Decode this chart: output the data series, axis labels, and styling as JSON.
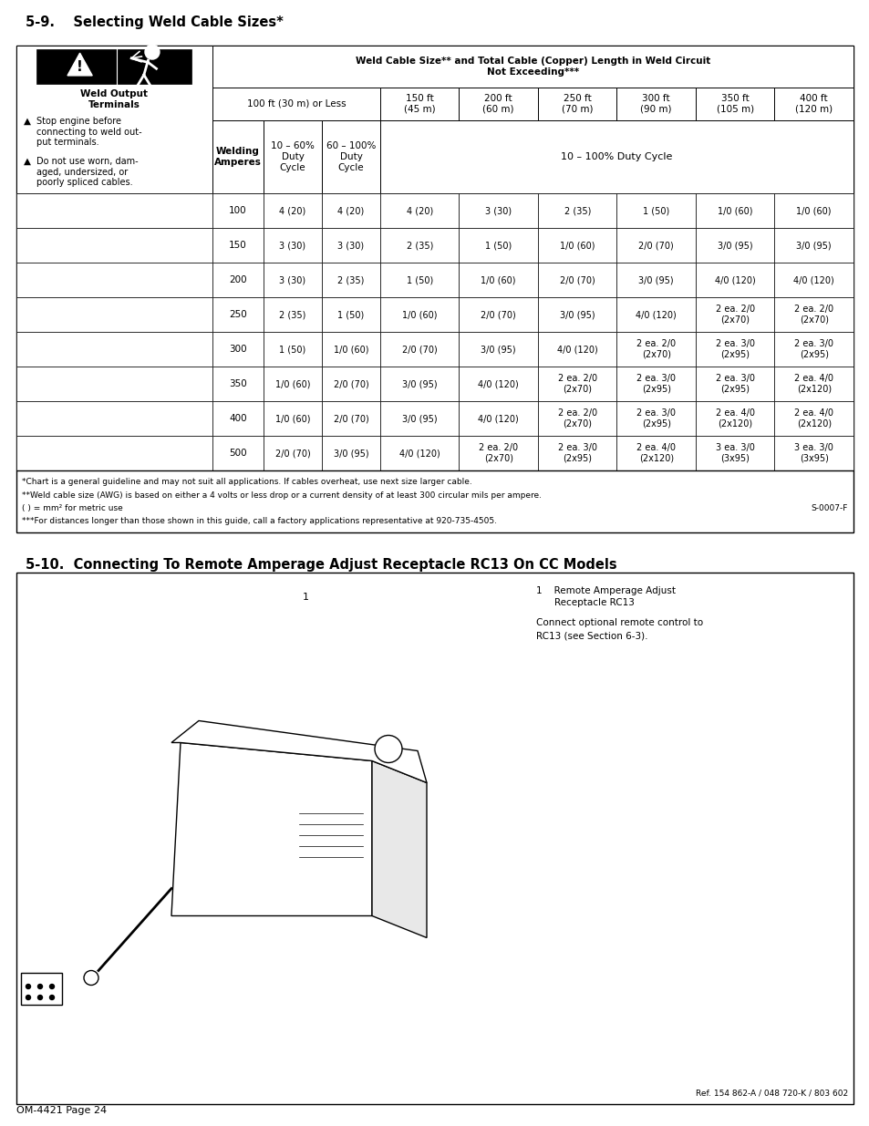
{
  "title1": "5-9.    Selecting Weld Cable Sizes*",
  "title2": "5-10.  Connecting To Remote Amperage Adjust Receptacle RC13 On CC Models",
  "page_label": "OM-4421 Page 24",
  "table_main_header": "Weld Cable Size** and Total Cable (Copper) Length in Weld Circuit\nNot Exceeding***",
  "col_headers_100": "100 ft (30 m) or Less",
  "col_sub_headers_100": [
    "10 – 60%\nDuty\nCycle",
    "60 – 100%\nDuty\nCycle"
  ],
  "col_headers_right": [
    "150 ft\n(45 m)",
    "200 ft\n(60 m)",
    "250 ft\n(70 m)",
    "300 ft\n(90 m)",
    "350 ft\n(105 m)",
    "400 ft\n(120 m)"
  ],
  "duty_cycle_label": "10 – 100% Duty Cycle",
  "welding_amperes_label": "Welding\nAmperes",
  "weld_output_text": "Weld Output\nTerminals",
  "warning_text1a": "▲",
  "warning_text1b": "Stop engine before\nconnecting to weld out-\nput terminals.",
  "warning_text2a": "▲",
  "warning_text2b": "Do not use worn, dam-\naged, undersized, or\npoorly spliced cables.",
  "amperes": [
    100,
    150,
    200,
    250,
    300,
    350,
    400,
    500
  ],
  "col1_data": [
    "4 (20)",
    "3 (30)",
    "3 (30)",
    "2 (35)",
    "1 (50)",
    "1/0 (60)",
    "1/0 (60)",
    "2/0 (70)"
  ],
  "col2_data": [
    "4 (20)",
    "3 (30)",
    "2 (35)",
    "1 (50)",
    "1/0 (60)",
    "2/0 (70)",
    "2/0 (70)",
    "3/0 (95)"
  ],
  "col3_data": [
    "4 (20)",
    "2 (35)",
    "1 (50)",
    "1/0 (60)",
    "2/0 (70)",
    "3/0 (95)",
    "3/0 (95)",
    "4/0 (120)"
  ],
  "col4_data": [
    "3 (30)",
    "1 (50)",
    "1/0 (60)",
    "2/0 (70)",
    "3/0 (95)",
    "4/0 (120)",
    "4/0 (120)",
    "2 ea. 2/0\n(2x70)"
  ],
  "col5_data": [
    "2 (35)",
    "1/0 (60)",
    "2/0 (70)",
    "3/0 (95)",
    "4/0 (120)",
    "2 ea. 2/0\n(2x70)",
    "2 ea. 2/0\n(2x70)",
    "2 ea. 3/0\n(2x95)"
  ],
  "col6_data": [
    "1 (50)",
    "2/0 (70)",
    "3/0 (95)",
    "4/0 (120)",
    "2 ea. 2/0\n(2x70)",
    "2 ea. 3/0\n(2x95)",
    "2 ea. 3/0\n(2x95)",
    "2 ea. 4/0\n(2x120)"
  ],
  "col7_data": [
    "1/0 (60)",
    "3/0 (95)",
    "4/0 (120)",
    "2 ea. 2/0\n(2x70)",
    "2 ea. 3/0\n(2x95)",
    "2 ea. 3/0\n(2x95)",
    "2 ea. 4/0\n(2x120)",
    "3 ea. 3/0\n(3x95)"
  ],
  "col8_data": [
    "1/0 (60)",
    "3/0 (95)",
    "4/0 (120)",
    "2 ea. 2/0\n(2x70)",
    "2 ea. 3/0\n(2x95)",
    "2 ea. 4/0\n(2x120)",
    "2 ea. 4/0\n(2x120)",
    "3 ea. 3/0\n(3x95)"
  ],
  "footnote1": "*Chart is a general guideline and may not suit all applications. If cables overheat, use next size larger cable.",
  "footnote2": "**Weld cable size (AWG) is based on either a 4 volts or less drop or a current density of at least 300 circular mils per ampere.",
  "footnote3": "( ) = mm² for metric use",
  "footnote3_right": "S-0007-F",
  "footnote4": "***For distances longer than those shown in this guide, call a factory applications representative at 920-735-4505.",
  "section510_text1": "1    Remote Amperage Adjust\n      Receptacle RC13",
  "section510_text2": "Connect optional remote control to\nRC13 (see Section 6-3).",
  "ref_text": "Ref. 154 862-A / 048 720-K / 803 602",
  "bg_color": "#ffffff"
}
